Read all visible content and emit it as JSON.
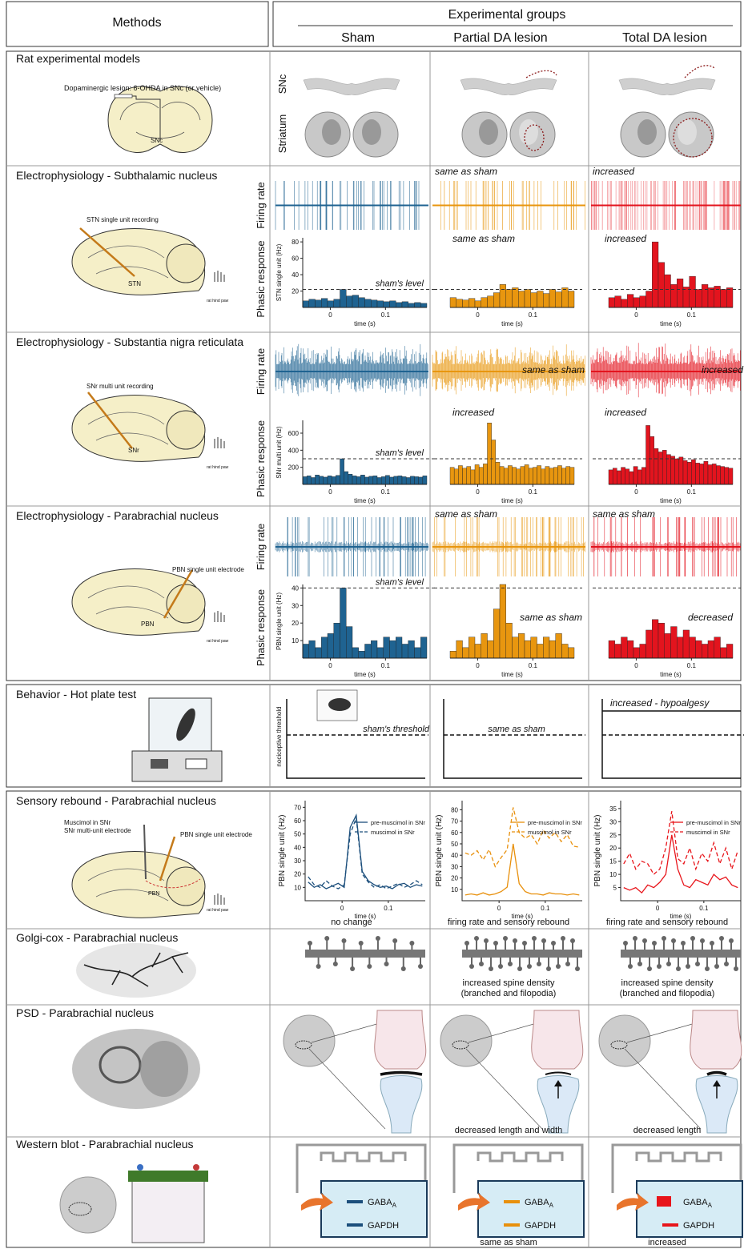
{
  "header": {
    "methods": "Methods",
    "title": "Experimental groups",
    "groups": [
      {
        "name": "Sham",
        "color": "#1c4f7c"
      },
      {
        "name": "Partial DA lesion",
        "color": "#e8900c"
      },
      {
        "name": "Total DA lesion",
        "color": "#e8151b"
      }
    ]
  },
  "models": {
    "title": "Rat experimental models",
    "lesion_label": "Dopaminergic lesion: 6-OHDA in SNc (or vehicle)",
    "region_label": "SNc",
    "row_labels": [
      "SNc",
      "Striatum"
    ]
  },
  "ephys": [
    {
      "title": "Electrophysiology - Subthalamic nucleus",
      "recording_label": "STN single unit recording",
      "region_label": "STN",
      "stimulus_label": "rat hind paw",
      "row_labels": [
        "Firing rate",
        "Phasic response"
      ],
      "y_axis_label": "STN single unit (Hz)",
      "x_axis_label": "time (s)",
      "ylim": [
        0,
        85
      ],
      "yticks": [
        20,
        40,
        60,
        80
      ],
      "xlim": [
        -0.05,
        0.175
      ],
      "xticks": [
        0,
        0.1
      ],
      "reference_label": "sham's level",
      "reference_value": 22,
      "groups": [
        {
          "color": "#1f6391",
          "values": [
            8,
            10,
            9,
            11,
            8,
            10,
            22,
            14,
            15,
            12,
            10,
            9,
            8,
            7,
            8,
            6,
            7,
            5,
            6,
            5
          ]
        },
        {
          "color": "#e8960f",
          "firing_note": "same as sham",
          "phasic_note": "same as sham",
          "values": [
            12,
            10,
            9,
            11,
            8,
            12,
            14,
            18,
            28,
            22,
            24,
            20,
            22,
            18,
            20,
            17,
            22,
            19,
            24,
            20
          ]
        },
        {
          "color": "#e3141e",
          "firing_note": "increased",
          "phasic_note": "increased",
          "values": [
            12,
            14,
            10,
            16,
            12,
            14,
            20,
            80,
            55,
            40,
            28,
            35,
            25,
            38,
            22,
            28,
            24,
            26,
            22,
            24
          ]
        }
      ]
    },
    {
      "title": "Electrophysiology - Substantia nigra reticulata",
      "recording_label": "SNr multi unit recording",
      "region_label": "SNr",
      "stimulus_label": "rat hind paw",
      "row_labels": [
        "Firing rate",
        "Phasic response"
      ],
      "y_axis_label": "SNr multi unit (Hz)",
      "x_axis_label": "time (s)",
      "ylim": [
        0,
        750
      ],
      "yticks": [
        200,
        400,
        600
      ],
      "xlim": [
        -0.05,
        0.175
      ],
      "xticks": [
        0,
        0.1
      ],
      "reference_label": "sham's level",
      "reference_value": 300,
      "groups": [
        {
          "color": "#1f6391",
          "values": [
            90,
            100,
            80,
            110,
            95,
            85,
            100,
            90,
            105,
            300,
            150,
            120,
            100,
            90,
            110,
            85,
            95,
            100,
            80,
            90,
            105,
            85,
            95,
            100,
            90,
            80,
            95,
            90,
            85,
            100
          ]
        },
        {
          "color": "#e8960f",
          "firing_note": "same as sham",
          "phasic_note": "increased",
          "values": [
            200,
            180,
            220,
            190,
            210,
            170,
            230,
            200,
            240,
            720,
            520,
            260,
            210,
            190,
            220,
            200,
            180,
            210,
            230,
            190,
            200,
            220,
            180,
            210,
            190,
            200,
            220,
            190,
            210,
            200
          ]
        },
        {
          "color": "#e3141e",
          "firing_note": "increased",
          "phasic_note": "increased",
          "values": [
            170,
            190,
            160,
            200,
            180,
            150,
            210,
            170,
            200,
            690,
            560,
            420,
            380,
            400,
            350,
            330,
            300,
            320,
            280,
            260,
            290,
            250,
            240,
            270,
            230,
            240,
            220,
            210,
            200,
            190
          ]
        }
      ]
    },
    {
      "title": "Electrophysiology - Parabrachial nucleus",
      "recording_label": "PBN single unit electrode",
      "region_label": "PBN",
      "stimulus_label": "rat hind paw",
      "row_labels": [
        "Firing rate",
        "Phasic response"
      ],
      "y_axis_label": "PBN single unit (Hz)",
      "x_axis_label": "time (s)",
      "ylim": [
        0,
        42
      ],
      "yticks": [
        10,
        20,
        30,
        40
      ],
      "xlim": [
        -0.05,
        0.175
      ],
      "xticks": [
        0,
        0.1
      ],
      "reference_label": "sham's level",
      "reference_value": 40,
      "groups": [
        {
          "color": "#1f6391",
          "values": [
            8,
            10,
            6,
            12,
            14,
            20,
            40,
            18,
            6,
            4,
            8,
            10,
            6,
            12,
            10,
            12,
            8,
            10,
            6,
            12
          ]
        },
        {
          "color": "#e8960f",
          "firing_note": "same as sham",
          "phasic_note": "same as sham",
          "values": [
            4,
            10,
            6,
            12,
            8,
            14,
            10,
            28,
            42,
            20,
            12,
            14,
            10,
            12,
            8,
            12,
            10,
            14,
            8,
            6
          ]
        },
        {
          "color": "#e3141e",
          "firing_note": "same as sham",
          "phasic_note": "decreased",
          "values": [
            10,
            8,
            12,
            10,
            6,
            8,
            16,
            22,
            20,
            14,
            18,
            12,
            16,
            12,
            10,
            8,
            10,
            12,
            6,
            8
          ]
        }
      ]
    }
  ],
  "behavior": {
    "title": "Behavior - Hot plate test",
    "y_axis_label": "nociceptive threshold",
    "reference_label": "sham's threshold",
    "notes": [
      "same as sham",
      "increased - hypoalgesy"
    ]
  },
  "rebound": {
    "title": "Sensory rebound - Parabrachial nucleus",
    "muscimol_label": "Muscimol in SNr",
    "snr_label": "SNr multi-unit electrode",
    "pbn_label": "PBN single unit electrode",
    "region_label": "PBN",
    "stimulus_label": "rat hind paw",
    "y_axis_label": "PBN single unit (Hz)",
    "x_axis_label": "time (s)",
    "xlim": [
      -0.08,
      0.18
    ],
    "xticks": [
      0,
      0.1
    ],
    "groups": [
      {
        "color": "#1c4f7c",
        "ylim": [
          0,
          75
        ],
        "yticks": [
          10,
          20,
          30,
          40,
          50,
          60,
          70
        ],
        "note": "no change",
        "series": [
          {
            "name": "pre-muscimol in SNr",
            "values": [
              14,
              10,
              12,
              9,
              11,
              13,
              10,
              55,
              64,
              22,
              15,
              12,
              10,
              11,
              9,
              12,
              13,
              10,
              12,
              11
            ]
          },
          {
            "name": "muscimol in SNr",
            "values": [
              18,
              12,
              10,
              15,
              11,
              9,
              12,
              50,
              62,
              20,
              14,
              10,
              12,
              9,
              11,
              13,
              10,
              12,
              15,
              12
            ]
          }
        ]
      },
      {
        "color": "#e8900c",
        "ylim": [
          0,
          88
        ],
        "yticks": [
          10,
          20,
          30,
          40,
          50,
          60,
          70,
          80
        ],
        "note": "firing rate and sensory rebound",
        "series": [
          {
            "name": "pre-muscimol in SNr",
            "values": [
              5,
              6,
              5,
              7,
              5,
              6,
              8,
              12,
              50,
              15,
              8,
              6,
              6,
              5,
              7,
              6,
              6,
              5,
              6,
              5
            ]
          },
          {
            "name": "muscimol in SNr",
            "values": [
              42,
              40,
              44,
              36,
              45,
              30,
              38,
              45,
              82,
              60,
              55,
              58,
              50,
              62,
              55,
              60,
              52,
              58,
              48,
              47
            ]
          }
        ]
      },
      {
        "color": "#e8151b",
        "ylim": [
          0,
          38
        ],
        "yticks": [
          5,
          10,
          15,
          20,
          25,
          30,
          35
        ],
        "note": "firing rate and sensory rebound",
        "series": [
          {
            "name": "pre-muscimol in SNr",
            "values": [
              5,
              4,
              5,
              3,
              6,
              5,
              7,
              10,
              25,
              12,
              6,
              5,
              8,
              7,
              6,
              10,
              8,
              9,
              6,
              5
            ]
          },
          {
            "name": "muscimol in SNr",
            "values": [
              14,
              18,
              12,
              15,
              14,
              10,
              12,
              20,
              34,
              16,
              14,
              20,
              12,
              18,
              15,
              22,
              14,
              20,
              12,
              19
            ]
          }
        ]
      }
    ]
  },
  "golgi": {
    "title": "Golgi-cox - Parabrachial nucleus",
    "notes": [
      [
        "increased spine density",
        "(branched and filopodia)"
      ],
      [
        "increased spine density",
        "(branched and filopodia)"
      ]
    ]
  },
  "psd": {
    "title": "PSD - Parabrachial nucleus",
    "notes": [
      "decreased length and width",
      "decreased length"
    ]
  },
  "western": {
    "title": "Western blot - Parabrachial nucleus",
    "gaba": "GABA",
    "gaba_sub": "A",
    "gapdh": "GAPDH",
    "notes": [
      "same as sham",
      "increased"
    ]
  }
}
